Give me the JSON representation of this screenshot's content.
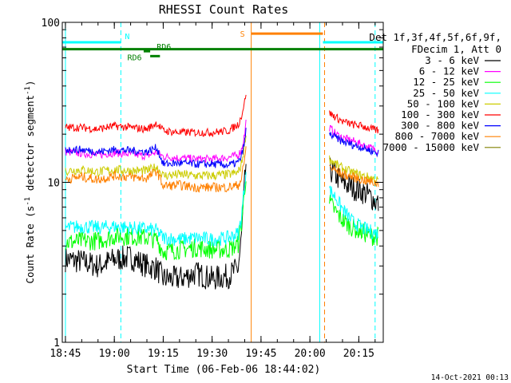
{
  "chart_data": {
    "type": "line",
    "title": "RHESSI Count Rates",
    "xlabel": "Start Time (06-Feb-06 18:44:02)",
    "ylabel_main": "Count Rate (s",
    "ylabel_sup1": "-1",
    "ylabel_mid": " detector segment",
    "ylabel_sup2": "-1",
    "ylabel_end": ")",
    "y_scale": "log",
    "ylim": [
      1,
      100
    ],
    "xlim": [
      "18:44:02",
      "20:22:30"
    ],
    "x_ticks": [
      "18:45",
      "19:00",
      "19:15",
      "19:30",
      "19:45",
      "20:00",
      "20:15"
    ],
    "y_ticks": [
      "1",
      "10",
      "100"
    ],
    "legend_header": [
      "Det 1f,3f,4f,5f,6f,9f,",
      "FDecim 1, Att 0"
    ],
    "legend_placement": "right",
    "data_gaps": [
      [
        "19:40:30",
        "20:05:30"
      ]
    ],
    "series": [
      {
        "name": "3 - 6 keV",
        "color": "#000000",
        "segments": [
          {
            "x": [
              "18:45",
              "18:50",
              "18:55",
              "19:00",
              "19:05",
              "19:10",
              "19:13",
              "19:15",
              "19:20",
              "19:25",
              "19:30",
              "19:35",
              "19:38",
              "19:39",
              "19:40",
              "19:40:30"
            ],
            "y": [
              3.3,
              3.2,
              3.0,
              3.3,
              3.4,
              3.0,
              2.9,
              2.5,
              2.5,
              2.7,
              2.5,
              2.6,
              2.9,
              4.5,
              10,
              14
            ]
          },
          {
            "x": [
              "20:06",
              "20:08",
              "20:10",
              "20:13",
              "20:16",
              "20:19",
              "20:21"
            ],
            "y": [
              12,
              11,
              10,
              9.3,
              8.8,
              8.0,
              7.3
            ]
          }
        ]
      },
      {
        "name": "6 - 12 keV",
        "color": "#ff00ff",
        "segments": [
          {
            "x": [
              "18:45",
              "18:50",
              "18:55",
              "19:00",
              "19:05",
              "19:10",
              "19:13",
              "19:15",
              "19:20",
              "19:25",
              "19:30",
              "19:35",
              "19:38",
              "19:39",
              "19:40",
              "19:40:30"
            ],
            "y": [
              15.5,
              15.2,
              14.8,
              15.3,
              15.0,
              14.6,
              15.5,
              14.5,
              14.2,
              14.0,
              14.0,
              14.3,
              14.8,
              16,
              20,
              25
            ]
          },
          {
            "x": [
              "20:06",
              "20:08",
              "20:10",
              "20:13",
              "20:16",
              "20:19",
              "20:21"
            ],
            "y": [
              22,
              20,
              19,
              18.2,
              17.2,
              16.3,
              15.8
            ]
          }
        ]
      },
      {
        "name": "12 - 25 keV",
        "color": "#00ff00",
        "segments": [
          {
            "x": [
              "18:45",
              "18:50",
              "18:55",
              "19:00",
              "19:05",
              "19:10",
              "19:13",
              "19:15",
              "19:20",
              "19:25",
              "19:30",
              "19:35",
              "19:38",
              "19:39",
              "19:40",
              "19:40:30"
            ],
            "y": [
              4.2,
              4.3,
              4.3,
              4.6,
              4.6,
              4.5,
              4.4,
              3.7,
              3.8,
              3.9,
              3.8,
              3.8,
              4.1,
              5.5,
              9,
              12
            ]
          },
          {
            "x": [
              "20:06",
              "20:08",
              "20:10",
              "20:13",
              "20:16",
              "20:19",
              "20:21"
            ],
            "y": [
              7.5,
              6.5,
              5.8,
              5.2,
              4.9,
              4.6,
              4.6
            ]
          }
        ]
      },
      {
        "name": "25 - 50 keV",
        "color": "#00ffff",
        "segments": [
          {
            "x": [
              "18:45",
              "18:50",
              "18:55",
              "19:00",
              "19:05",
              "19:10",
              "19:13",
              "19:15",
              "19:20",
              "19:25",
              "19:30",
              "19:35",
              "19:38",
              "19:39",
              "19:40",
              "19:40:30"
            ],
            "y": [
              5.2,
              5.3,
              5.2,
              5.3,
              5.2,
              5.1,
              5.0,
              4.5,
              4.4,
              4.5,
              4.4,
              4.5,
              4.8,
              6.0,
              10,
              13
            ]
          },
          {
            "x": [
              "20:06",
              "20:08",
              "20:10",
              "20:13",
              "20:16",
              "20:19",
              "20:21"
            ],
            "y": [
              9,
              8,
              6.8,
              5.7,
              5.2,
              4.9,
              4.8
            ]
          }
        ]
      },
      {
        "name": "50 - 100 keV",
        "color": "#cccc00",
        "segments": [
          {
            "x": [
              "18:45",
              "18:50",
              "18:55",
              "19:00",
              "19:05",
              "19:10",
              "19:13",
              "19:15",
              "19:20",
              "19:25",
              "19:30",
              "19:35",
              "19:38",
              "19:39",
              "19:40",
              "19:40:30"
            ],
            "y": [
              11.8,
              12.0,
              11.6,
              12.0,
              11.8,
              11.8,
              12.5,
              11.0,
              11.2,
              11.0,
              11.0,
              11.2,
              11.5,
              13,
              17,
              22
            ]
          },
          {
            "x": [
              "20:06",
              "20:08",
              "20:10",
              "20:13",
              "20:16",
              "20:19",
              "20:21"
            ],
            "y": [
              14,
              13,
              12.2,
              11.5,
              11,
              10.6,
              10.2
            ]
          }
        ]
      },
      {
        "name": "100 - 300 keV",
        "color": "#ff0000",
        "segments": [
          {
            "x": [
              "18:45",
              "18:50",
              "18:55",
              "19:00",
              "19:05",
              "19:10",
              "19:13",
              "19:15",
              "19:20",
              "19:25",
              "19:30",
              "19:35",
              "19:38",
              "19:39",
              "19:40",
              "19:40:30"
            ],
            "y": [
              22,
              22,
              21.5,
              22.5,
              22,
              21.5,
              23.5,
              21,
              20.5,
              20.5,
              20.5,
              21,
              23,
              26,
              32,
              38
            ]
          },
          {
            "x": [
              "20:06",
              "20:08",
              "20:10",
              "20:13",
              "20:16",
              "20:19",
              "20:21"
            ],
            "y": [
              27,
              25.5,
              24,
              23,
              22.5,
              21.5,
              21
            ]
          }
        ]
      },
      {
        "name": "300 - 800 keV",
        "color": "#0000ff",
        "segments": [
          {
            "x": [
              "18:45",
              "18:50",
              "18:55",
              "19:00",
              "19:05",
              "19:10",
              "19:13",
              "19:15",
              "19:20",
              "19:25",
              "19:30",
              "19:35",
              "19:38",
              "19:39",
              "19:40",
              "19:40:30"
            ],
            "y": [
              16,
              16,
              15.5,
              16,
              15.8,
              15.5,
              16.5,
              13,
              13.2,
              13.0,
              13.0,
              12.8,
              13.3,
              14.5,
              18,
              22
            ]
          },
          {
            "x": [
              "20:06",
              "20:08",
              "20:10",
              "20:13",
              "20:16",
              "20:19",
              "20:21"
            ],
            "y": [
              20,
              19,
              18,
              17.2,
              16.5,
              15.7,
              15.2
            ]
          }
        ]
      },
      {
        "name": "800 - 7000 keV",
        "color": "#ff8000",
        "segments": [
          {
            "x": [
              "18:45",
              "18:50",
              "18:55",
              "19:00",
              "19:05",
              "19:10",
              "19:13",
              "19:15",
              "19:20",
              "19:25",
              "19:30",
              "19:35",
              "19:38",
              "19:39",
              "19:40",
              "19:40:30"
            ],
            "y": [
              10.5,
              10.8,
              10.4,
              11.0,
              10.8,
              10.6,
              11.8,
              9.5,
              9.6,
              9.3,
              9.3,
              9.3,
              9.6,
              10.5,
              14,
              18
            ]
          },
          {
            "x": [
              "20:06",
              "20:08",
              "20:10",
              "20:13",
              "20:16",
              "20:19",
              "20:21"
            ],
            "y": [
              12.5,
              11.8,
              11.2,
              10.8,
              10.4,
              10.0,
              9.8
            ]
          }
        ]
      },
      {
        "name": "7000 - 15000 keV",
        "color": "#808000",
        "segments": []
      }
    ]
  },
  "annotations": {
    "attenuator_labels": [
      "N",
      "S"
    ],
    "rd_labels": [
      "RD6",
      "RD6"
    ],
    "dashed_markers_cyan": [
      "19:02",
      "20:20"
    ],
    "solid_markers_cyan": [
      "18:45",
      "20:03"
    ],
    "solid_marker_orange": "19:42",
    "dashed_marker_orange": "20:04:30",
    "bars": [
      {
        "color": "#00ffff",
        "from": "18:44:02",
        "to": "19:02",
        "level": 75
      },
      {
        "color": "#00ffff",
        "from": "20:04",
        "to": "20:22:30",
        "level": 75
      },
      {
        "color": "#ff8000",
        "from": "19:42",
        "to": "20:04",
        "level": 85
      },
      {
        "color": "#008000",
        "from": "18:44:02",
        "to": "20:22:30",
        "level": 68
      },
      {
        "color": "#008000",
        "from": "19:11",
        "to": "19:14",
        "level": 61.5
      },
      {
        "color": "#008000",
        "from": "19:09",
        "to": "19:11",
        "level": 66
      }
    ]
  },
  "footer_timestamp": "14-Oct-2021 00:13"
}
